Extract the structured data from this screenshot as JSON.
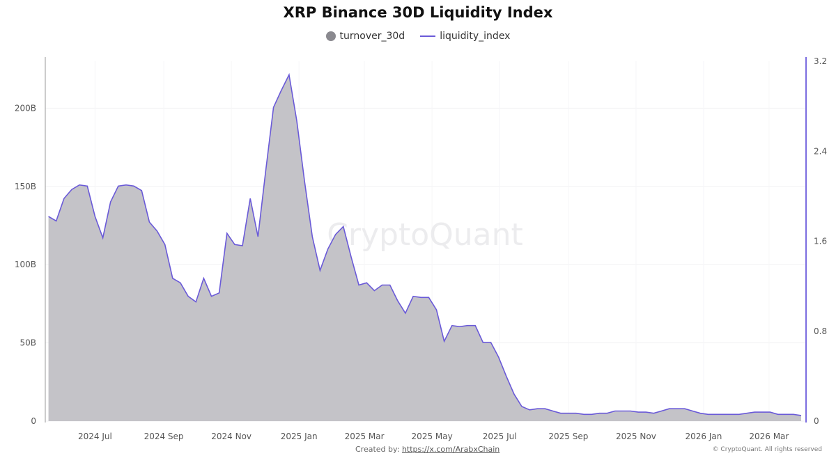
{
  "chart_data": {
    "type": "area",
    "title": "XRP Binance 30D Liquidity Index",
    "legend": [
      "turnover_30d",
      "liquidity_index"
    ],
    "legend_placement": "top",
    "grid": true,
    "colors": {
      "turnover_30d": "#c4c3c8",
      "liquidity_index": "#6a5ad8",
      "right_axis": "#7b6de0"
    },
    "x_ticks": [
      "2024 Jul",
      "2024 Sep",
      "2024 Nov",
      "2025 Jan",
      "2025 Mar",
      "2025 May",
      "2025 Jul",
      "2025 Sep",
      "2025 Nov",
      "2026 Jan",
      "2026 Mar"
    ],
    "x_tick_dates": [
      "2024-07-01",
      "2024-09-01",
      "2024-11-01",
      "2025-01-01",
      "2025-03-01",
      "2025-05-01",
      "2025-07-01",
      "2025-09-01",
      "2025-11-01",
      "2026-01-01",
      "2026-03-01"
    ],
    "y_left_ticks": [
      "0",
      "50B",
      "100B",
      "150B",
      "200B"
    ],
    "y_left_tick_values": [
      0,
      50,
      100,
      150,
      200
    ],
    "y_right_ticks": [
      "0",
      "0.8",
      "1.6",
      "2.4",
      "3.2"
    ],
    "y_right_tick_values": [
      0,
      0.8,
      1.6,
      2.4,
      3.2
    ],
    "ylim_left": [
      0,
      230
    ],
    "ylim_right": [
      0,
      3.2
    ],
    "xlim": [
      "2024-05-19",
      "2026-03-30"
    ],
    "x": [
      "2024-05-20",
      "2024-05-27",
      "2024-06-03",
      "2024-06-10",
      "2024-06-17",
      "2024-06-24",
      "2024-07-01",
      "2024-07-08",
      "2024-07-15",
      "2024-07-22",
      "2024-07-29",
      "2024-08-05",
      "2024-08-12",
      "2024-08-19",
      "2024-08-26",
      "2024-09-02",
      "2024-09-09",
      "2024-09-16",
      "2024-09-23",
      "2024-09-30",
      "2024-10-07",
      "2024-10-14",
      "2024-10-21",
      "2024-10-28",
      "2024-11-04",
      "2024-11-11",
      "2024-11-18",
      "2024-11-25",
      "2024-12-02",
      "2024-12-09",
      "2024-12-16",
      "2024-12-23",
      "2024-12-30",
      "2025-01-06",
      "2025-01-13",
      "2025-01-20",
      "2025-01-27",
      "2025-02-03",
      "2025-02-10",
      "2025-02-17",
      "2025-02-24",
      "2025-03-03",
      "2025-03-10",
      "2025-03-17",
      "2025-03-24",
      "2025-03-31",
      "2025-04-07",
      "2025-04-14",
      "2025-04-21",
      "2025-04-28",
      "2025-05-05",
      "2025-05-12",
      "2025-05-19",
      "2025-05-26",
      "2025-06-02",
      "2025-06-09",
      "2025-06-16",
      "2025-06-23",
      "2025-06-30",
      "2025-07-07",
      "2025-07-14",
      "2025-07-21",
      "2025-07-28",
      "2025-08-04",
      "2025-08-11",
      "2025-08-18",
      "2025-08-25",
      "2025-09-01",
      "2025-09-08",
      "2025-09-15",
      "2025-09-22",
      "2025-09-29",
      "2025-10-06",
      "2025-10-13",
      "2025-10-20",
      "2025-10-27",
      "2025-11-03",
      "2025-11-10",
      "2025-11-17",
      "2025-11-24",
      "2025-12-01",
      "2025-12-08",
      "2025-12-15",
      "2025-12-22",
      "2025-12-29",
      "2026-01-05",
      "2026-01-12",
      "2026-01-19",
      "2026-01-26",
      "2026-02-02",
      "2026-02-09",
      "2026-02-16",
      "2026-02-23",
      "2026-03-02",
      "2026-03-09",
      "2026-03-16",
      "2026-03-23",
      "2026-03-30"
    ],
    "series": [
      {
        "name": "turnover_30d",
        "unit": "B",
        "axis": "left",
        "values": [
          131,
          128,
          142,
          148,
          151,
          150,
          131,
          117,
          140,
          150,
          151,
          150,
          147,
          127,
          121,
          113,
          91,
          88,
          80,
          76,
          91,
          80,
          82,
          120,
          113,
          112,
          142,
          118,
          160,
          200,
          211,
          221,
          192,
          153,
          118,
          96,
          110,
          119,
          124,
          105,
          87,
          88,
          83,
          87,
          87,
          77,
          69,
          80,
          79,
          79,
          71,
          51,
          61,
          60,
          61,
          61,
          50,
          50,
          41,
          29,
          17,
          9,
          7.1,
          7.6,
          7.6,
          6.7,
          5.3,
          4.9,
          4.9,
          4.4,
          4.4,
          4.9,
          5.3,
          6.2,
          6.2,
          6.2,
          5.8,
          5.8,
          5.3,
          6.7,
          7.6,
          8.0,
          7.6,
          6.2,
          4.9,
          4.0,
          4.4,
          4.4,
          4.4,
          4.4,
          5.3,
          5.8,
          5.8,
          5.8,
          4.0,
          4.0,
          4.0,
          3.6
        ]
      },
      {
        "name": "liquidity_index",
        "axis": "right",
        "values": [
          1.82,
          1.78,
          1.98,
          2.06,
          2.1,
          2.09,
          1.82,
          1.63,
          1.95,
          2.09,
          2.1,
          2.09,
          2.05,
          1.77,
          1.69,
          1.57,
          1.27,
          1.23,
          1.11,
          1.06,
          1.27,
          1.11,
          1.14,
          1.67,
          1.57,
          1.56,
          1.98,
          1.64,
          2.23,
          2.79,
          2.94,
          3.08,
          2.67,
          2.13,
          1.64,
          1.34,
          1.53,
          1.66,
          1.73,
          1.46,
          1.21,
          1.23,
          1.16,
          1.21,
          1.21,
          1.07,
          0.96,
          1.11,
          1.1,
          1.1,
          0.99,
          0.71,
          0.85,
          0.84,
          0.85,
          0.85,
          0.7,
          0.7,
          0.57,
          0.4,
          0.24,
          0.13,
          0.1,
          0.11,
          0.11,
          0.09,
          0.07,
          0.07,
          0.07,
          0.06,
          0.06,
          0.07,
          0.07,
          0.09,
          0.09,
          0.09,
          0.08,
          0.08,
          0.07,
          0.09,
          0.11,
          0.11,
          0.11,
          0.09,
          0.07,
          0.06,
          0.06,
          0.06,
          0.06,
          0.06,
          0.07,
          0.08,
          0.08,
          0.08,
          0.06,
          0.06,
          0.06,
          0.05
        ]
      }
    ]
  },
  "watermark": "CryptoQuant",
  "footer": {
    "created_by_label": "Created by:",
    "created_by_link": "https://x.com/ArabxChain",
    "copyright": "© CryptoQuant. All rights reserved"
  }
}
